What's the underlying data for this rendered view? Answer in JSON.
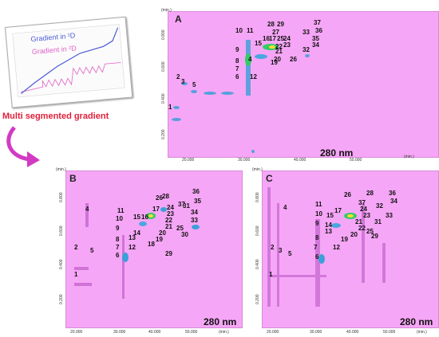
{
  "inset": {
    "title": "Multi segmented gradient",
    "legend_1d": "Gradient in ¹D",
    "legend_2d": "Gradient in ²D",
    "colors": {
      "d1": "#4a5ad8",
      "d2": "#e060c8",
      "title": "#e0203a"
    }
  },
  "panels": {
    "A": {
      "letter": "A",
      "wavelength": "280 nm",
      "x_unit": "(min.)",
      "y_unit": "(min.)",
      "xticks": [
        "20.000",
        "30.000",
        "40.000",
        "50.000"
      ],
      "yticks": [
        "0.200",
        "0.400",
        "0.600",
        "0.800"
      ],
      "peaks": [
        "1",
        "2",
        "3",
        "4",
        "5",
        "6",
        "7",
        "8",
        "9",
        "10",
        "11",
        "12",
        "15",
        "16",
        "17",
        "19",
        "20",
        "21",
        "22",
        "23",
        "24",
        "25",
        "26",
        "27",
        "28",
        "29",
        "32",
        "33",
        "34",
        "35",
        "36",
        "37"
      ]
    },
    "B": {
      "letter": "B",
      "wavelength": "280 nm",
      "x_unit": "(min.)",
      "y_unit": "(min.)",
      "xticks": [
        "20.000",
        "30.000",
        "40.000",
        "50.000"
      ],
      "yticks": [
        "0.200",
        "0.400",
        "0.600",
        "0.800"
      ],
      "peaks": [
        "1",
        "2",
        "4",
        "5",
        "6",
        "7",
        "8",
        "9",
        "10",
        "11",
        "12",
        "13",
        "14",
        "15",
        "16",
        "17",
        "18",
        "19",
        "20",
        "21",
        "22",
        "23",
        "24",
        "25",
        "26",
        "28",
        "29",
        "30",
        "31",
        "33",
        "34",
        "35",
        "36",
        "37"
      ]
    },
    "C": {
      "letter": "C",
      "wavelength": "280 nm",
      "x_unit": "(min.)",
      "y_unit": "(min.)",
      "xticks": [
        "20.000",
        "30.000",
        "40.000",
        "50.000"
      ],
      "yticks": [
        "0.200",
        "0.400",
        "0.600",
        "0.800"
      ],
      "peaks": [
        "1",
        "2",
        "3",
        "4",
        "5",
        "6",
        "7",
        "8",
        "9",
        "10",
        "11",
        "12",
        "13",
        "14",
        "15",
        "17",
        "19",
        "20",
        "21",
        "22",
        "23",
        "24",
        "25",
        "26",
        "28",
        "29",
        "31",
        "32",
        "33",
        "34",
        "36",
        "37"
      ]
    }
  }
}
